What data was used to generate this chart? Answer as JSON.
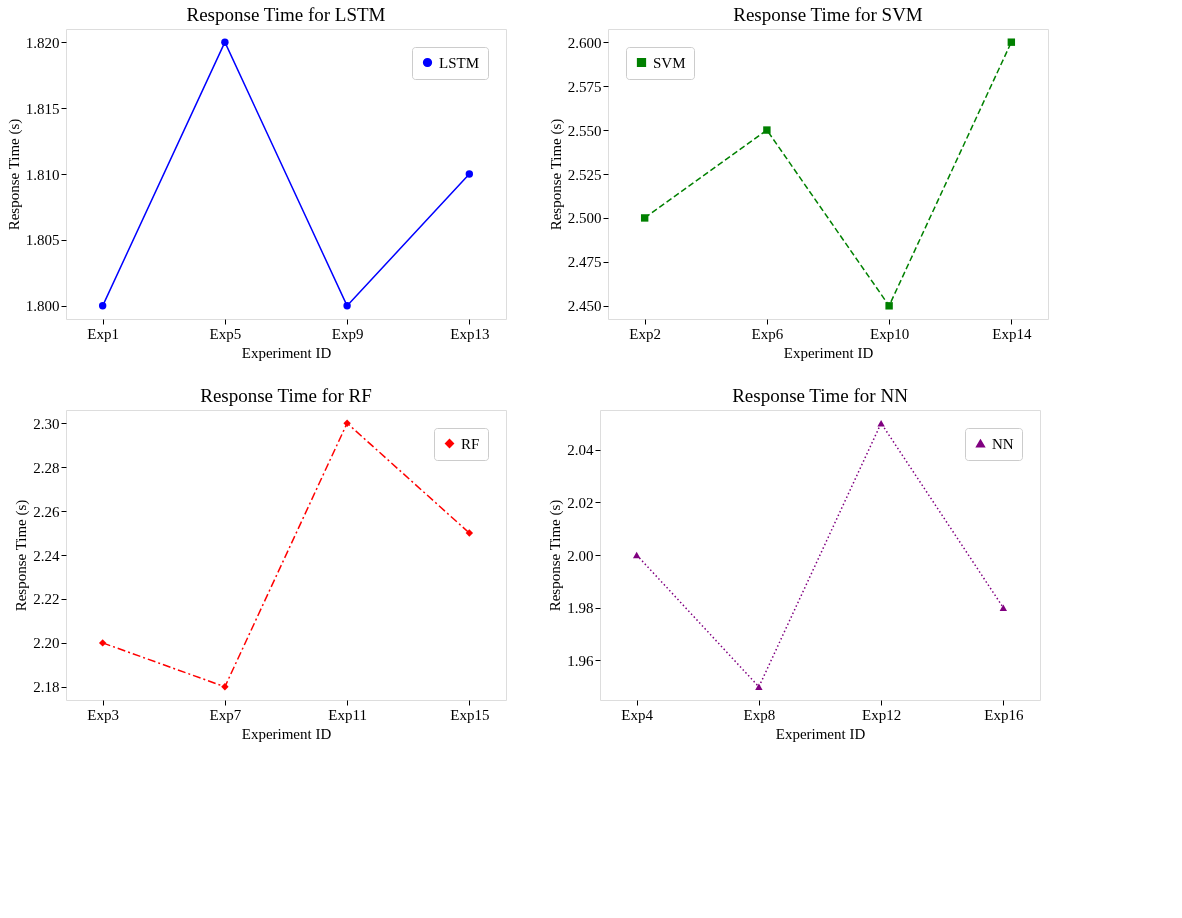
{
  "chart_data": [
    {
      "type": "line",
      "title": "Response Time for LSTM",
      "xlabel": "Experiment ID",
      "ylabel": "Response Time (s)",
      "categories": [
        "Exp1",
        "Exp5",
        "Exp9",
        "Exp13"
      ],
      "series": [
        {
          "name": "LSTM",
          "color": "#0000ff",
          "values": [
            1.8,
            1.82,
            1.8,
            1.81
          ]
        }
      ],
      "ylim": [
        1.799,
        1.821
      ],
      "yticks": [
        {
          "value": 1.8,
          "label": "1.800"
        },
        {
          "value": 1.805,
          "label": "1.805"
        },
        {
          "value": 1.81,
          "label": "1.810"
        },
        {
          "value": 1.815,
          "label": "1.815"
        },
        {
          "value": 1.82,
          "label": "1.820"
        }
      ],
      "grid": false,
      "legend": "top right",
      "marker": "circle",
      "line_style": "solid"
    },
    {
      "type": "line",
      "title": "Response Time for SVM",
      "xlabel": "Experiment ID",
      "ylabel": "Response Time (s)",
      "categories": [
        "Exp2",
        "Exp6",
        "Exp10",
        "Exp14"
      ],
      "series": [
        {
          "name": "SVM",
          "color": "#008000",
          "values": [
            2.5,
            2.55,
            2.45,
            2.6
          ]
        }
      ],
      "ylim": [
        2.4425,
        2.6075
      ],
      "yticks": [
        {
          "value": 2.45,
          "label": "2.450"
        },
        {
          "value": 2.475,
          "label": "2.475"
        },
        {
          "value": 2.5,
          "label": "2.500"
        },
        {
          "value": 2.525,
          "label": "2.525"
        },
        {
          "value": 2.55,
          "label": "2.550"
        },
        {
          "value": 2.575,
          "label": "2.575"
        },
        {
          "value": 2.6,
          "label": "2.600"
        }
      ],
      "grid": false,
      "legend": "top left",
      "marker": "square",
      "line_style": "dashed"
    },
    {
      "type": "line",
      "title": "Response Time for RF",
      "xlabel": "Experiment ID",
      "ylabel": "Response Time (s)",
      "categories": [
        "Exp3",
        "Exp7",
        "Exp11",
        "Exp15"
      ],
      "series": [
        {
          "name": "RF",
          "color": "#ff0000",
          "values": [
            2.2,
            2.18,
            2.3,
            2.25
          ]
        }
      ],
      "ylim": [
        2.174,
        2.306
      ],
      "yticks": [
        {
          "value": 2.18,
          "label": "2.18"
        },
        {
          "value": 2.2,
          "label": "2.20"
        },
        {
          "value": 2.22,
          "label": "2.22"
        },
        {
          "value": 2.24,
          "label": "2.24"
        },
        {
          "value": 2.26,
          "label": "2.26"
        },
        {
          "value": 2.28,
          "label": "2.28"
        },
        {
          "value": 2.3,
          "label": "2.30"
        }
      ],
      "grid": false,
      "legend": "top right",
      "marker": "diamond",
      "line_style": "dashdot"
    },
    {
      "type": "line",
      "title": "Response Time for NN",
      "xlabel": "Experiment ID",
      "ylabel": "Response Time (s)",
      "categories": [
        "Exp4",
        "Exp8",
        "Exp12",
        "Exp16"
      ],
      "series": [
        {
          "name": "NN",
          "color": "#800080",
          "values": [
            2.0,
            1.95,
            2.05,
            1.98
          ]
        }
      ],
      "ylim": [
        1.945,
        2.055
      ],
      "yticks": [
        {
          "value": 1.96,
          "label": "1.96"
        },
        {
          "value": 1.98,
          "label": "1.98"
        },
        {
          "value": 2.0,
          "label": "2.00"
        },
        {
          "value": 2.02,
          "label": "2.02"
        },
        {
          "value": 2.04,
          "label": "2.04"
        }
      ],
      "grid": false,
      "legend": "top right",
      "marker": "triangle",
      "line_style": "dotted"
    }
  ]
}
